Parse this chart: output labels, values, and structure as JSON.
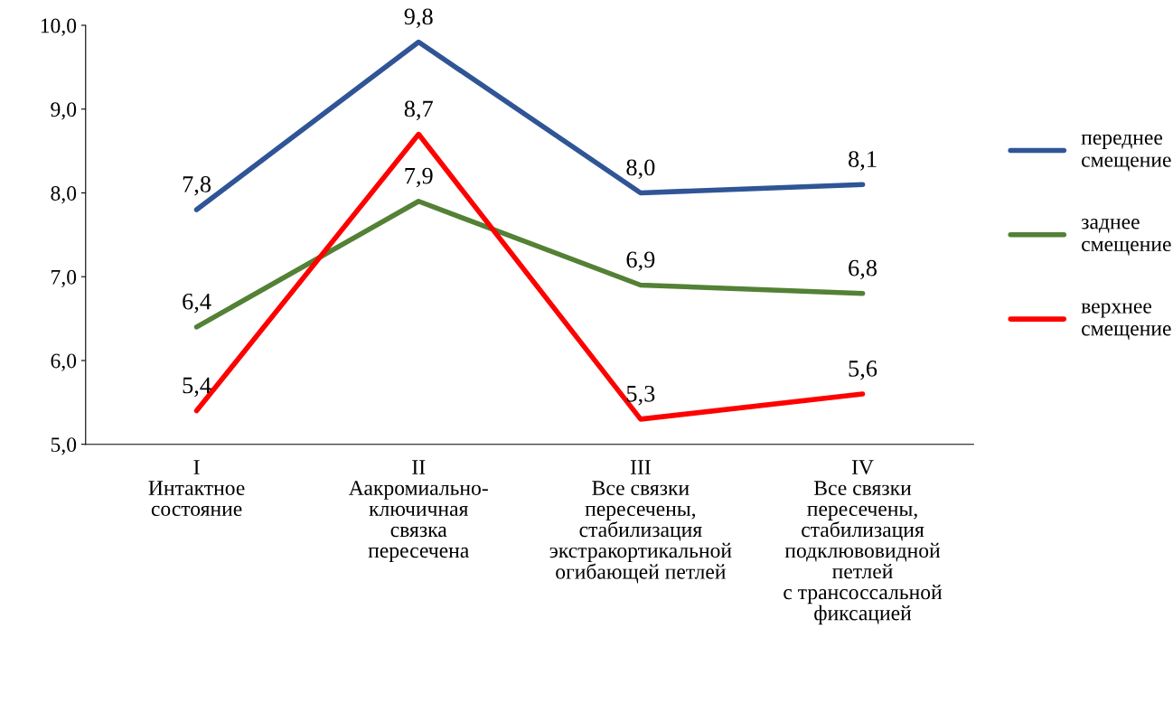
{
  "chart_data": {
    "type": "line",
    "categories": [
      "I\nИнтактное\nсостояние",
      "II\nАакромиально-\nключичная\nсвязка\nпересечена",
      "III\nВсе связки\nпересечены,\nстабилизация\nэкстракортикальной\nогибающей петлей",
      "IV\nВсе связки\nпересечены,\nстабилизация\nподклювовидной\nпетлей\nс трансоссальной\nфиксацией"
    ],
    "series": [
      {
        "name": "переднее\nсмещение",
        "color": "#2f5597",
        "values": [
          7.8,
          9.8,
          8.0,
          8.1
        ],
        "value_labels": [
          "7,8",
          "9,8",
          "8,0",
          "8,1"
        ]
      },
      {
        "name": "заднее\nсмещение",
        "color": "#538135",
        "values": [
          6.4,
          7.9,
          6.9,
          6.8
        ],
        "value_labels": [
          "6,4",
          "7,9",
          "6,9",
          "6,8"
        ]
      },
      {
        "name": "верхнее\nсмещение",
        "color": "#ff0000",
        "values": [
          5.4,
          8.7,
          5.3,
          5.6
        ],
        "value_labels": [
          "5,4",
          "8,7",
          "5,3",
          "5,6"
        ]
      }
    ],
    "ylim": [
      5,
      10
    ],
    "yticks": [
      {
        "value": 5,
        "label": "5,0"
      },
      {
        "value": 6,
        "label": "6,0"
      },
      {
        "value": 7,
        "label": "7,0"
      },
      {
        "value": 8,
        "label": "8,0"
      },
      {
        "value": 9,
        "label": "9,0"
      },
      {
        "value": 10,
        "label": "10,0"
      }
    ],
    "grid": false,
    "legend": "right",
    "marker": "none",
    "line_style": "solid"
  }
}
